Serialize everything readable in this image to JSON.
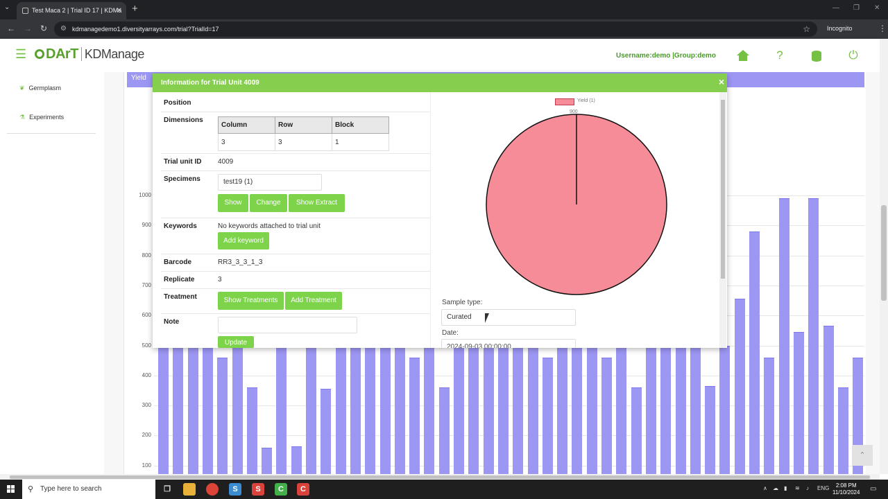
{
  "browser": {
    "tab_title": "Test Maca 2 | Trial ID 17 | KDMa",
    "url": "kdmanagedemo1.diversityarrays.com/trial?TrialId=17",
    "incognito_label": "Incognito"
  },
  "header": {
    "logo_text": "DArT",
    "app_name": "KDManage",
    "user_info": "Username:demo |Group:demo"
  },
  "sidebar": {
    "items": [
      {
        "label": "Germplasm",
        "icon": "sprout-icon"
      },
      {
        "label": "Experiments",
        "icon": "flask-icon"
      }
    ]
  },
  "chart_data": {
    "type": "bar",
    "title": "Yield",
    "ylim": [
      100,
      1000
    ],
    "yticks": [
      "1000",
      "900",
      "800",
      "700",
      "600",
      "500",
      "400",
      "300",
      "200",
      "100"
    ],
    "values": [
      500,
      500,
      500,
      500,
      460,
      500,
      360,
      160,
      500,
      165,
      500,
      355,
      500,
      500,
      500,
      500,
      500,
      460,
      500,
      360,
      500,
      500,
      500,
      500,
      500,
      500,
      460,
      500,
      500,
      500,
      460,
      500,
      360,
      500,
      500,
      500,
      500,
      365,
      500,
      655,
      880,
      460,
      990,
      545,
      990,
      565,
      360,
      460
    ]
  },
  "modal": {
    "title": "Information for Trial Unit 4009",
    "close_label": "×",
    "fields": {
      "position_label": "Position",
      "dimensions_label": "Dimensions",
      "dim_headers": [
        "Column",
        "Row",
        "Block"
      ],
      "dim_values": [
        "3",
        "3",
        "1"
      ],
      "trial_unit_id_label": "Trial unit ID",
      "trial_unit_id": "4009",
      "specimens_label": "Specimens",
      "specimen_value": "test19 (1)",
      "keywords_label": "Keywords",
      "keywords_value": "No keywords attached to trial unit",
      "barcode_label": "Barcode",
      "barcode": "RR3_3_3_1_3",
      "replicate_label": "Replicate",
      "replicate": "3",
      "treatment_label": "Treatment",
      "note_label": "Note"
    },
    "buttons": {
      "show": "Show",
      "change": "Change",
      "show_extract": "Show Extract",
      "add_keyword": "Add keyword",
      "show_treatments": "Show Treatments",
      "add_treatment": "Add Treatment",
      "update": "Update"
    },
    "pie": {
      "legend": "Yield (1)",
      "value_label": "900",
      "slices": [
        {
          "name": "Yield (1)",
          "value": 900
        }
      ],
      "color": "#f78c99"
    },
    "sample_type_label": "Sample type:",
    "sample_type": "Curated",
    "date_label": "Date:",
    "date_value": "2024-09-03 00:00:00"
  },
  "taskbar": {
    "search_placeholder": "Type here to search",
    "lang": "ENG",
    "time": "2:08 PM",
    "date": "11/10/2024"
  }
}
